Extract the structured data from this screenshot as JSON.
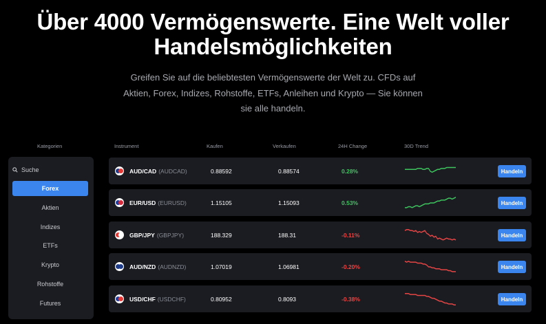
{
  "hero": {
    "title_line1": "Über 4000 Vermögenswerte. Eine Welt voller",
    "title_line2": "Handelsmöglichkeiten",
    "subtitle": "Greifen Sie auf die beliebtesten Vermögenswerte der Welt zu. CFDs auf Aktien, Forex, Indizes, Rohstoffe, ETFs, Anleihen und Krypto — Sie können sie alle handeln."
  },
  "headers": {
    "categories": "Kategorien",
    "instrument": "Instrument",
    "buy": "Kaufen",
    "sell": "Verkaufen",
    "change": "24H Change",
    "trend": "30D Trend"
  },
  "sidebar": {
    "search_label": "Suche",
    "categories": [
      "Forex",
      "Aktien",
      "Indizes",
      "ETFs",
      "Krypto",
      "Rohstoffe",
      "Futures"
    ],
    "active": "Forex"
  },
  "colors": {
    "accent": "#3a86ee",
    "positive": "#3ec55e",
    "negative": "#e84545"
  },
  "rows": [
    {
      "pair": "AUD/CAD",
      "code": "(AUDCAD)",
      "buy": "0.88592",
      "sell": "0.88574",
      "change": "0.28%",
      "direction": "pos",
      "flags": [
        "#1f3d8a",
        "#e53935"
      ],
      "trend": [
        6,
        6,
        6,
        6,
        6,
        6,
        6,
        5,
        5,
        5,
        6,
        6,
        5,
        5,
        8,
        9,
        8,
        7,
        6,
        6,
        5,
        5,
        5,
        4,
        4,
        4,
        4,
        4,
        4
      ],
      "trade": "Handeln"
    },
    {
      "pair": "EUR/USD",
      "code": "(EURUSD)",
      "buy": "1.15105",
      "sell": "1.15093",
      "change": "0.53%",
      "direction": "pos",
      "flags": [
        "#1e3fa0",
        "#d62b3a"
      ],
      "trend": [
        13,
        13,
        12,
        12,
        13,
        12,
        11,
        11,
        12,
        11,
        10,
        9,
        9,
        9,
        8,
        8,
        8,
        7,
        6,
        6,
        5,
        5,
        5,
        4,
        3,
        3,
        4,
        3,
        2
      ],
      "trade": "Handeln"
    },
    {
      "pair": "GBP/JPY",
      "code": "(GBPJPY)",
      "buy": "188.329",
      "sell": "188.31",
      "change": "-0.11%",
      "direction": "neg",
      "flags": [
        "#e53935",
        "#ffffff"
      ],
      "trend": [
        3,
        2,
        2,
        3,
        3,
        4,
        3,
        5,
        4,
        5,
        4,
        3,
        6,
        7,
        9,
        8,
        10,
        9,
        12,
        11,
        12,
        13,
        12,
        11,
        12,
        12,
        13,
        12,
        13
      ],
      "trade": "Handeln"
    },
    {
      "pair": "AUD/NZD",
      "code": "(AUDNZD)",
      "buy": "1.07019",
      "sell": "1.06981",
      "change": "-0.20%",
      "direction": "neg",
      "flags": [
        "#1f3d8a",
        "#1f3d8a"
      ],
      "trend": [
        2,
        3,
        2,
        3,
        3,
        3,
        3,
        4,
        4,
        4,
        5,
        5,
        6,
        8,
        8,
        9,
        9,
        10,
        10,
        10,
        11,
        11,
        11,
        11,
        12,
        12,
        13,
        13,
        13
      ],
      "trade": "Handeln"
    },
    {
      "pair": "USD/CHF",
      "code": "(USDCHF)",
      "buy": "0.80952",
      "sell": "0.8093",
      "change": "-0.38%",
      "direction": "neg",
      "flags": [
        "#1e3fa0",
        "#e53935"
      ],
      "trend": [
        2,
        2,
        2,
        3,
        3,
        3,
        3,
        4,
        4,
        4,
        4,
        4,
        5,
        5,
        6,
        7,
        7,
        8,
        9,
        10,
        10,
        11,
        12,
        12,
        13,
        13,
        13,
        14,
        14
      ],
      "trade": "Handeln"
    }
  ]
}
